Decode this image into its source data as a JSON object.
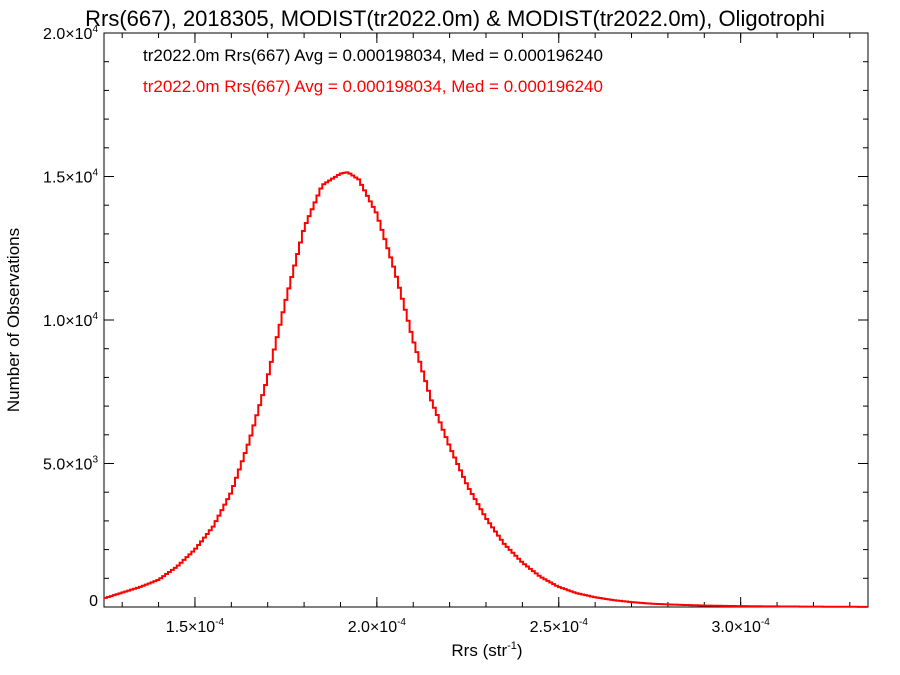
{
  "chart_data": {
    "type": "line",
    "title": "Rrs(667), 2018305, MODIST(tr2022.0m) & MODIST(tr2022.0m), Oligotrophi",
    "xlabel": {
      "base": "Rrs (str",
      "sup": "-1",
      "tail": ")"
    },
    "ylabel": "Number of Observations",
    "xlim": [
      0.000125,
      0.000335
    ],
    "ylim": [
      0,
      20000
    ],
    "grid": false,
    "x_ticks": [
      {
        "value": 0.00015,
        "mantissa": "1.5×10",
        "exp": "-4"
      },
      {
        "value": 0.0002,
        "mantissa": "2.0×10",
        "exp": "-4"
      },
      {
        "value": 0.00025,
        "mantissa": "2.5×10",
        "exp": "-4"
      },
      {
        "value": 0.0003,
        "mantissa": "3.0×10",
        "exp": "-4"
      }
    ],
    "y_ticks": [
      {
        "value": 0,
        "mantissa": "0",
        "exp": ""
      },
      {
        "value": 5000,
        "mantissa": "5.0×10",
        "exp": "3"
      },
      {
        "value": 10000,
        "mantissa": "1.0×10",
        "exp": "4"
      },
      {
        "value": 15000,
        "mantissa": "1.5×10",
        "exp": "4"
      },
      {
        "value": 20000,
        "mantissa": "2.0×10",
        "exp": "4"
      }
    ],
    "annotations": [
      {
        "text": "tr2022.0m Rrs(667) Avg = 0.000198034, Med = 0.000196240",
        "color": "#000000"
      },
      {
        "text": "tr2022.0m Rrs(667) Avg = 0.000198034, Med = 0.000196240",
        "color": "#ff0000"
      }
    ],
    "series": [
      {
        "color": "#ff0000",
        "x": [
          0.000125,
          0.00013,
          0.000135,
          0.00014,
          0.000145,
          0.00015,
          0.000155,
          0.00016,
          0.000165,
          0.00017,
          0.000175,
          0.00018,
          0.000185,
          0.00019,
          0.000192,
          0.000195,
          0.0002,
          0.000205,
          0.00021,
          0.000215,
          0.00022,
          0.000225,
          0.00023,
          0.000235,
          0.00024,
          0.000245,
          0.00025,
          0.000255,
          0.00026,
          0.000265,
          0.00027,
          0.000275,
          0.00028,
          0.00029,
          0.0003,
          0.00031,
          0.00032,
          0.00033,
          0.000335
        ],
        "y": [
          300,
          500,
          700,
          950,
          1400,
          2000,
          2800,
          4000,
          5800,
          8000,
          10700,
          13200,
          14700,
          15100,
          15150,
          14900,
          13700,
          11700,
          9300,
          7200,
          5600,
          4200,
          3100,
          2200,
          1550,
          1050,
          700,
          480,
          340,
          240,
          170,
          120,
          90,
          50,
          30,
          20,
          12,
          8,
          5
        ]
      }
    ]
  }
}
